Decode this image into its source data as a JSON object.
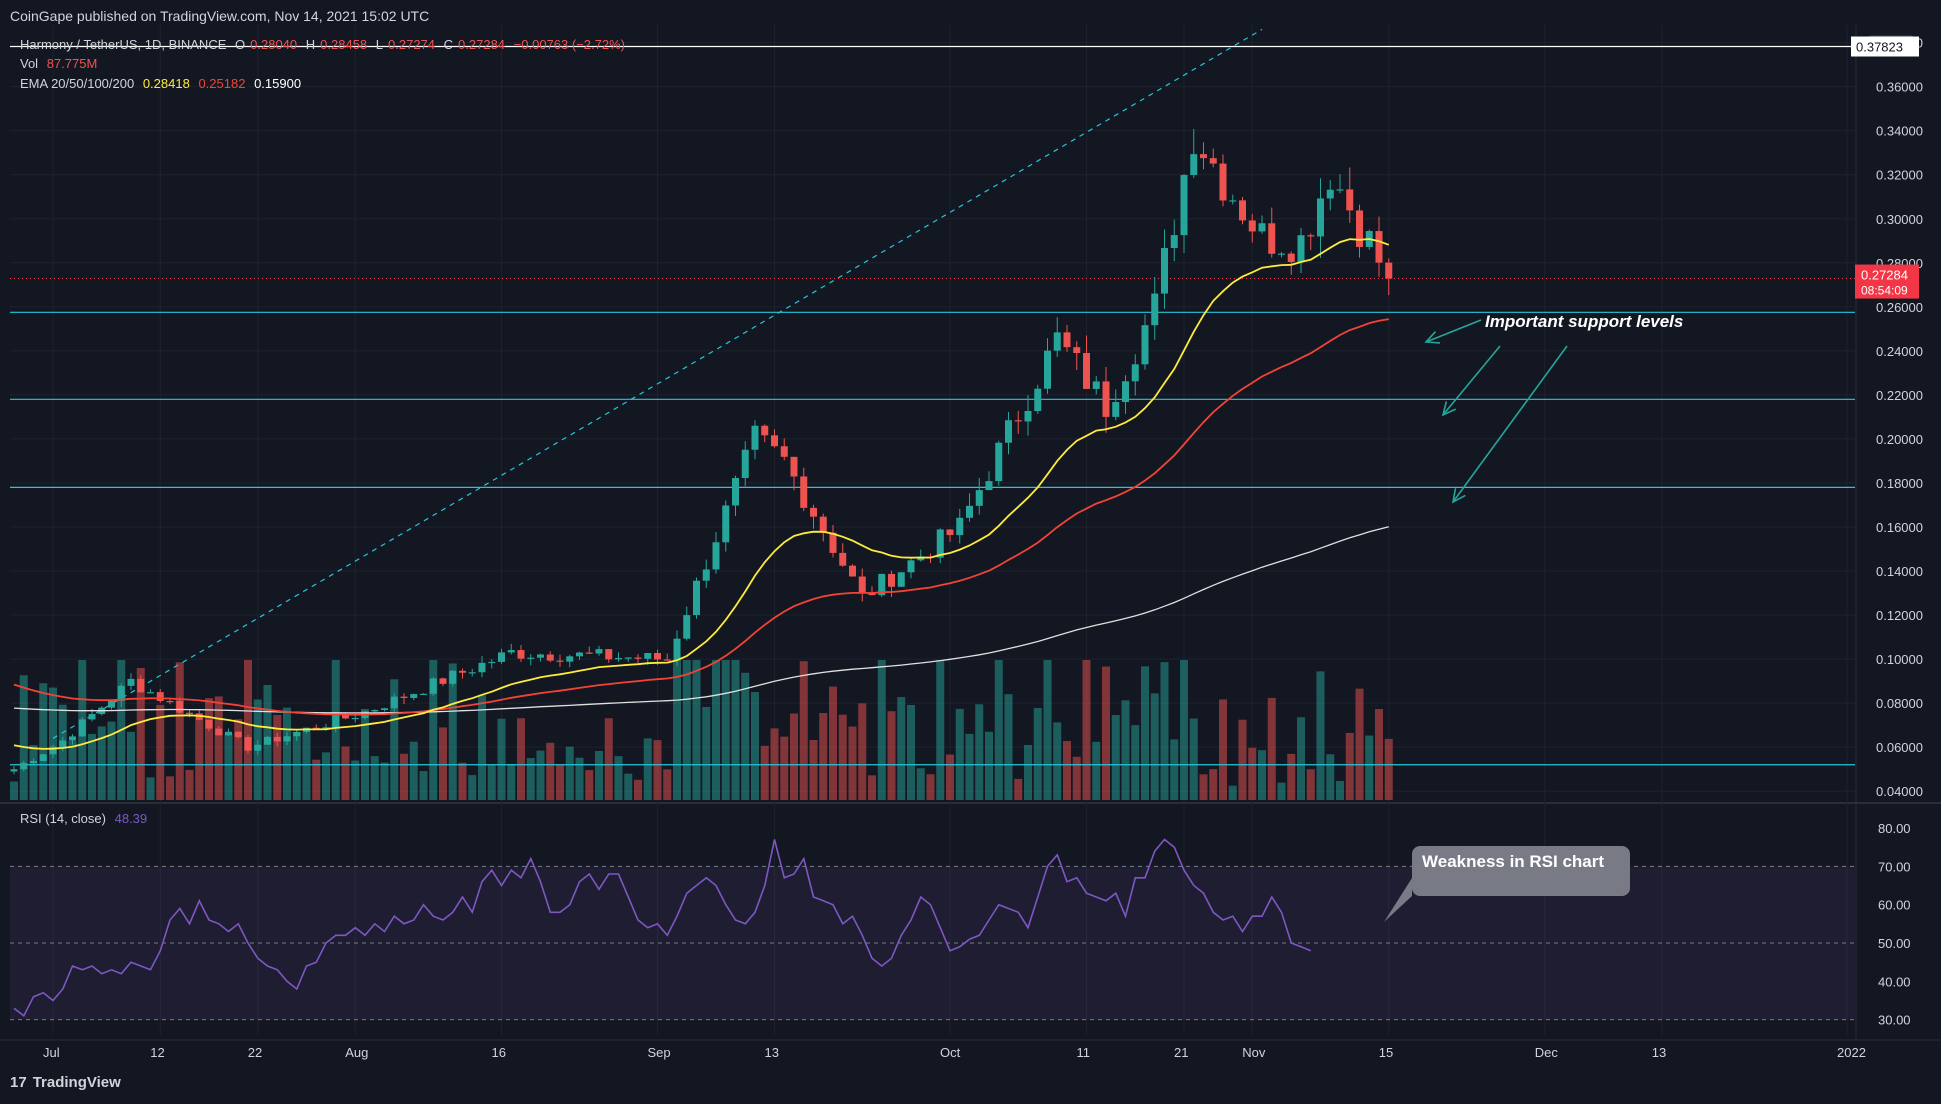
{
  "header": {
    "published": "CoinGape published on TradingView.com, Nov 14, 2021 15:02 UTC"
  },
  "legend": {
    "symbol": "Harmony / TetherUS, 1D, BINANCE",
    "o_label": "O",
    "o": "0.28040",
    "h_label": "H",
    "h": "0.28458",
    "l_label": "L",
    "l": "0.27274",
    "c_label": "C",
    "c": "0.27284",
    "change": "−0.00763 (−2.72%)",
    "vol_label": "Vol",
    "vol": "87.775M",
    "ema_label": "EMA 20/50/100/200",
    "ema20": "0.28418",
    "ema50": "0.25182",
    "ema200": "0.15900",
    "rsi_label": "RSI (14, close)",
    "rsi": "48.39"
  },
  "price_axis": {
    "currency": "USDT",
    "ticks": [
      "0.38000",
      "0.36000",
      "0.34000",
      "0.32000",
      "0.30000",
      "0.28000",
      "0.26000",
      "0.24000",
      "0.22000",
      "0.20000",
      "0.18000",
      "0.16000",
      "0.14000",
      "0.12000",
      "0.10000",
      "0.08000",
      "0.06000",
      "0.04000"
    ],
    "high_label": "0.37823",
    "last_price": "0.27284",
    "countdown": "08:54:09"
  },
  "rsi_axis": {
    "ticks": [
      "80.00",
      "70.00",
      "60.00",
      "50.00",
      "40.00",
      "30.00"
    ]
  },
  "time_axis": [
    "Jul",
    "12",
    "22",
    "Aug",
    "16",
    "Sep",
    "13",
    "Oct",
    "11",
    "21",
    "Nov",
    "15",
    "Dec",
    "13",
    "2022"
  ],
  "annotations": {
    "support": "Important support levels",
    "rsi_weakness": "Weakness in RSI chart"
  },
  "footer": {
    "brand": "TradingView",
    "logo_mark": "17"
  },
  "colors": {
    "background": "#131722",
    "up": "#26a69a",
    "down": "#ef5350",
    "ema20": "#ffeb3b",
    "ema50": "#f44336",
    "ema200": "#e0e0e0",
    "support": "#26c6da",
    "rsi": "#7e57c2",
    "price_tag": "#f23645"
  },
  "chart_data": {
    "type": "candlestick",
    "price_scale": "0.04 - 0.38 USDT",
    "support_levels": [
      0.2575,
      0.218,
      0.178,
      0.052
    ],
    "resistance_level": 0.37823,
    "waypoints": [
      {
        "date": "Jun 27",
        "price": 0.05
      },
      {
        "date": "Jul 1",
        "price": 0.063
      },
      {
        "date": "Jul 8",
        "price": 0.09
      },
      {
        "date": "Jul 20",
        "price": 0.06
      },
      {
        "date": "Aug 1",
        "price": 0.076
      },
      {
        "date": "Aug 16",
        "price": 0.103
      },
      {
        "date": "Sep 1",
        "price": 0.1
      },
      {
        "date": "Sep 10",
        "price": 0.2
      },
      {
        "date": "Sep 13",
        "price": 0.19
      },
      {
        "date": "Sep 21",
        "price": 0.128
      },
      {
        "date": "Oct 1",
        "price": 0.16
      },
      {
        "date": "Oct 8",
        "price": 0.22
      },
      {
        "date": "Oct 11",
        "price": 0.245
      },
      {
        "date": "Oct 16",
        "price": 0.215
      },
      {
        "date": "Oct 21",
        "price": 0.26
      },
      {
        "date": "Oct 25",
        "price": 0.34
      },
      {
        "date": "Oct 28",
        "price": 0.318
      },
      {
        "date": "Nov 1",
        "price": 0.292
      },
      {
        "date": "Nov 5",
        "price": 0.29
      },
      {
        "date": "Nov 8",
        "price": 0.322
      },
      {
        "date": "Nov 14",
        "price": 0.27284
      }
    ],
    "rsi_values": [
      33,
      31,
      36,
      37,
      35,
      38,
      44,
      43,
      44,
      42,
      43,
      42,
      45,
      44,
      43,
      48,
      56,
      59,
      55,
      61,
      56,
      55,
      53,
      55,
      50,
      46,
      44,
      43,
      40,
      38,
      44,
      45,
      50,
      52,
      52,
      54,
      52,
      55,
      53,
      57,
      55,
      56,
      60,
      57,
      56,
      58,
      62,
      58,
      66,
      69,
      65,
      69,
      67,
      72,
      66,
      58,
      58,
      60,
      66,
      68,
      64,
      68,
      68,
      62,
      56,
      54,
      55,
      52,
      57,
      63,
      65,
      67,
      65,
      60,
      56,
      55,
      58,
      65,
      77,
      67,
      68,
      72,
      62,
      61,
      60,
      55,
      57,
      52,
      46,
      44,
      46,
      52,
      56,
      62,
      60,
      54,
      48,
      49,
      51,
      52,
      56,
      60,
      59,
      58,
      54,
      62,
      70,
      73,
      66,
      67,
      63,
      62,
      61,
      63,
      57,
      67,
      67,
      74,
      77,
      75,
      69,
      65,
      63,
      58,
      56,
      57,
      53,
      57,
      57,
      62,
      58,
      50,
      49,
      48
    ]
  }
}
